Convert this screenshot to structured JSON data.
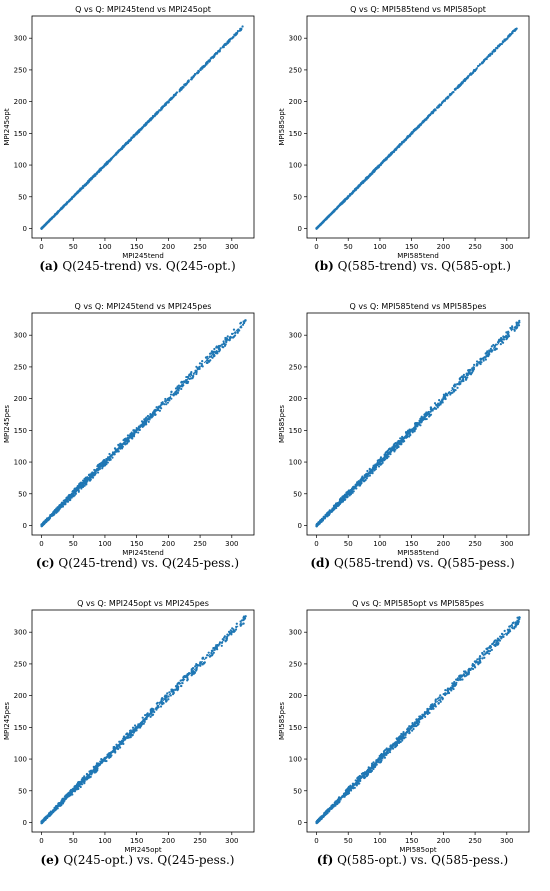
{
  "chart_data": [
    {
      "type": "scatter",
      "title": "Q vs Q: MPI245tend vs MPI245opt",
      "xlabel": "MPI245tend",
      "ylabel": "MPI245opt",
      "xticks": [
        0,
        50,
        100,
        150,
        200,
        250,
        300
      ],
      "yticks": [
        0,
        50,
        100,
        150,
        200,
        250,
        300
      ],
      "xlim": [
        -15,
        335
      ],
      "ylim": [
        -15,
        335
      ],
      "caption_letter": "(a)",
      "caption_text": " Q(245-trend) vs. Q(245-opt.)",
      "spread": 1.5,
      "max": 317,
      "diag_end": 317
    },
    {
      "type": "scatter",
      "title": "Q vs Q: MPI585tend vs MPI585opt",
      "xlabel": "MPI585tend",
      "ylabel": "MPI585opt",
      "xticks": [
        0,
        50,
        100,
        150,
        200,
        250,
        300
      ],
      "yticks": [
        0,
        50,
        100,
        150,
        200,
        250,
        300
      ],
      "xlim": [
        -15,
        335
      ],
      "ylim": [
        -15,
        335
      ],
      "caption_letter": "(b)",
      "caption_text": " Q(585-trend) vs. Q(585-opt.)",
      "spread": 1.5,
      "max": 316,
      "diag_end": 316
    },
    {
      "type": "scatter",
      "title": "Q vs Q: MPI245tend vs MPI245pes",
      "xlabel": "MPI245tend",
      "ylabel": "MPI245pes",
      "xticks": [
        0,
        50,
        100,
        150,
        200,
        250,
        300
      ],
      "yticks": [
        0,
        50,
        100,
        150,
        200,
        250,
        300
      ],
      "xlim": [
        -15,
        335
      ],
      "ylim": [
        -15,
        335
      ],
      "caption_letter": "(c)",
      "caption_text": " Q(245-trend) vs. Q(245-pess.)",
      "spread": 6,
      "max": 322,
      "diag_end": 322
    },
    {
      "type": "scatter",
      "title": "Q vs Q: MPI585tend vs MPI585pes",
      "xlabel": "MPI585tend",
      "ylabel": "MPI585pes",
      "xticks": [
        0,
        50,
        100,
        150,
        200,
        250,
        300
      ],
      "yticks": [
        0,
        50,
        100,
        150,
        200,
        250,
        300
      ],
      "xlim": [
        -15,
        335
      ],
      "ylim": [
        -15,
        335
      ],
      "caption_letter": "(d)",
      "caption_text": " Q(585-trend) vs. Q(585-pess.)",
      "spread": 6,
      "max": 322,
      "diag_end": 322
    },
    {
      "type": "scatter",
      "title": "Q vs Q: MPI245opt vs MPI245pes",
      "xlabel": "MPI245opt",
      "ylabel": "MPI245pes",
      "xticks": [
        0,
        50,
        100,
        150,
        200,
        250,
        300
      ],
      "yticks": [
        0,
        50,
        100,
        150,
        200,
        250,
        300
      ],
      "xlim": [
        -15,
        335
      ],
      "ylim": [
        -15,
        335
      ],
      "caption_letter": "(e)",
      "caption_text": " Q(245-opt.) vs. Q(245-pess.)",
      "spread": 6,
      "max": 322,
      "diag_end": 322
    },
    {
      "type": "scatter",
      "title": "Q vs Q: MPI585opt vs MPI585pes",
      "xlabel": "MPI585opt",
      "ylabel": "MPI585pes",
      "xticks": [
        0,
        50,
        100,
        150,
        200,
        250,
        300
      ],
      "yticks": [
        0,
        50,
        100,
        150,
        200,
        250,
        300
      ],
      "xlim": [
        -15,
        335
      ],
      "ylim": [
        -15,
        335
      ],
      "caption_letter": "(f)",
      "caption_text": " Q(585-opt.) vs. Q(585-pess.)",
      "spread": 6,
      "max": 322,
      "diag_end": 322
    }
  ],
  "colors": {
    "points": "#1f77b4",
    "axes": "#000000"
  }
}
